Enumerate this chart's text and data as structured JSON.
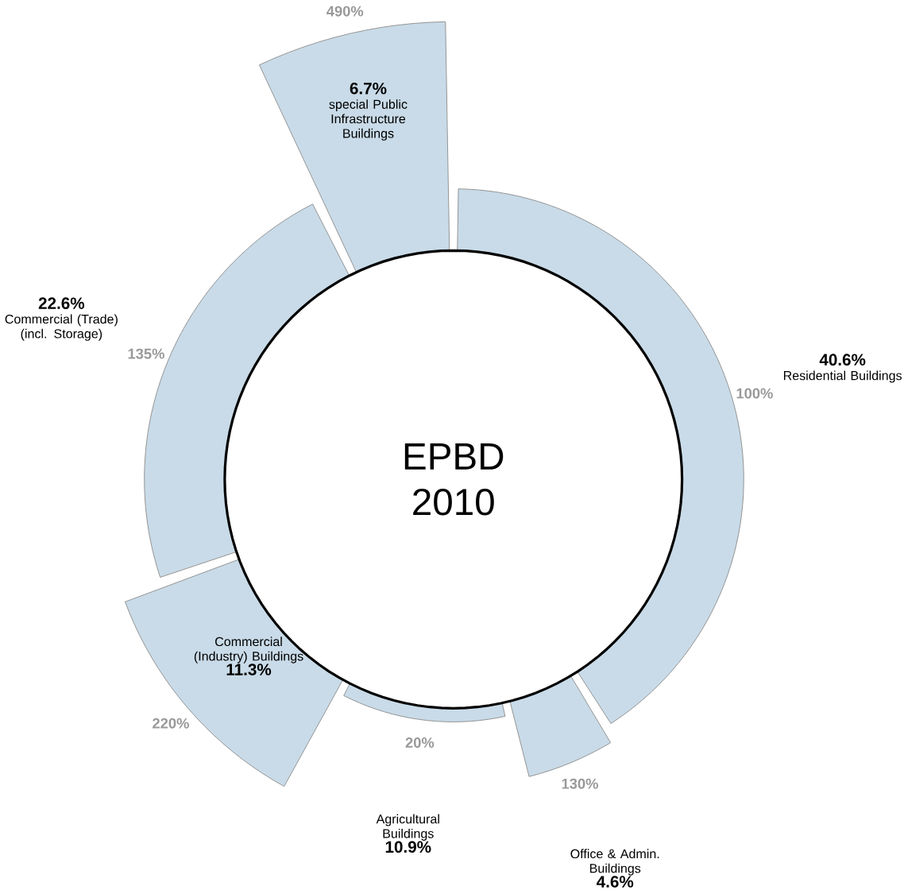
{
  "chart_data": {
    "type": "other",
    "title": "EPBD 2010",
    "categories": [
      "Residential Buildings",
      "Office & Admin. Buildings",
      "Agricultural Buildings",
      "Commercial (Industry) Buildings",
      "Commercial (Trade) (incl. Storage)",
      "special Public Infrastructure Buildings"
    ],
    "series": [
      {
        "values": [
          40.6,
          4.6,
          10.9,
          11.3,
          22.6,
          6.7
        ],
        "value_labels": [
          "40.6%",
          "4.6%",
          "10.9%",
          "11.3%",
          "22.6%",
          "6.7%"
        ]
      },
      {
        "color": "#c9dbe8",
        "values": [
          100,
          130,
          20,
          220,
          135,
          490
        ],
        "value_labels": [
          "100%",
          "130%",
          "20%",
          "220%",
          "135%",
          "490%"
        ]
      }
    ]
  }
}
